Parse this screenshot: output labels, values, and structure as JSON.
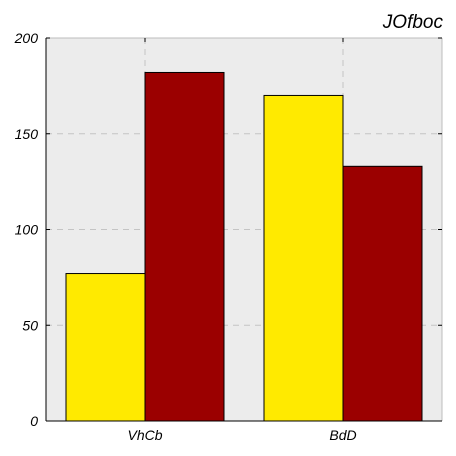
{
  "chart_data": {
    "type": "bar",
    "title": "JOfboc",
    "xlabel": "",
    "ylabel": "",
    "categories": [
      "VhCb",
      "BdD"
    ],
    "series": [
      {
        "values": [
          77,
          170
        ],
        "color": "#ffea00"
      },
      {
        "values": [
          182,
          133
        ],
        "color": "#9b0000"
      }
    ],
    "ylim": [
      0,
      200
    ],
    "yticks": [
      0,
      50,
      100,
      150,
      200
    ],
    "grid": true,
    "legend": "none",
    "background": "#ececec"
  }
}
